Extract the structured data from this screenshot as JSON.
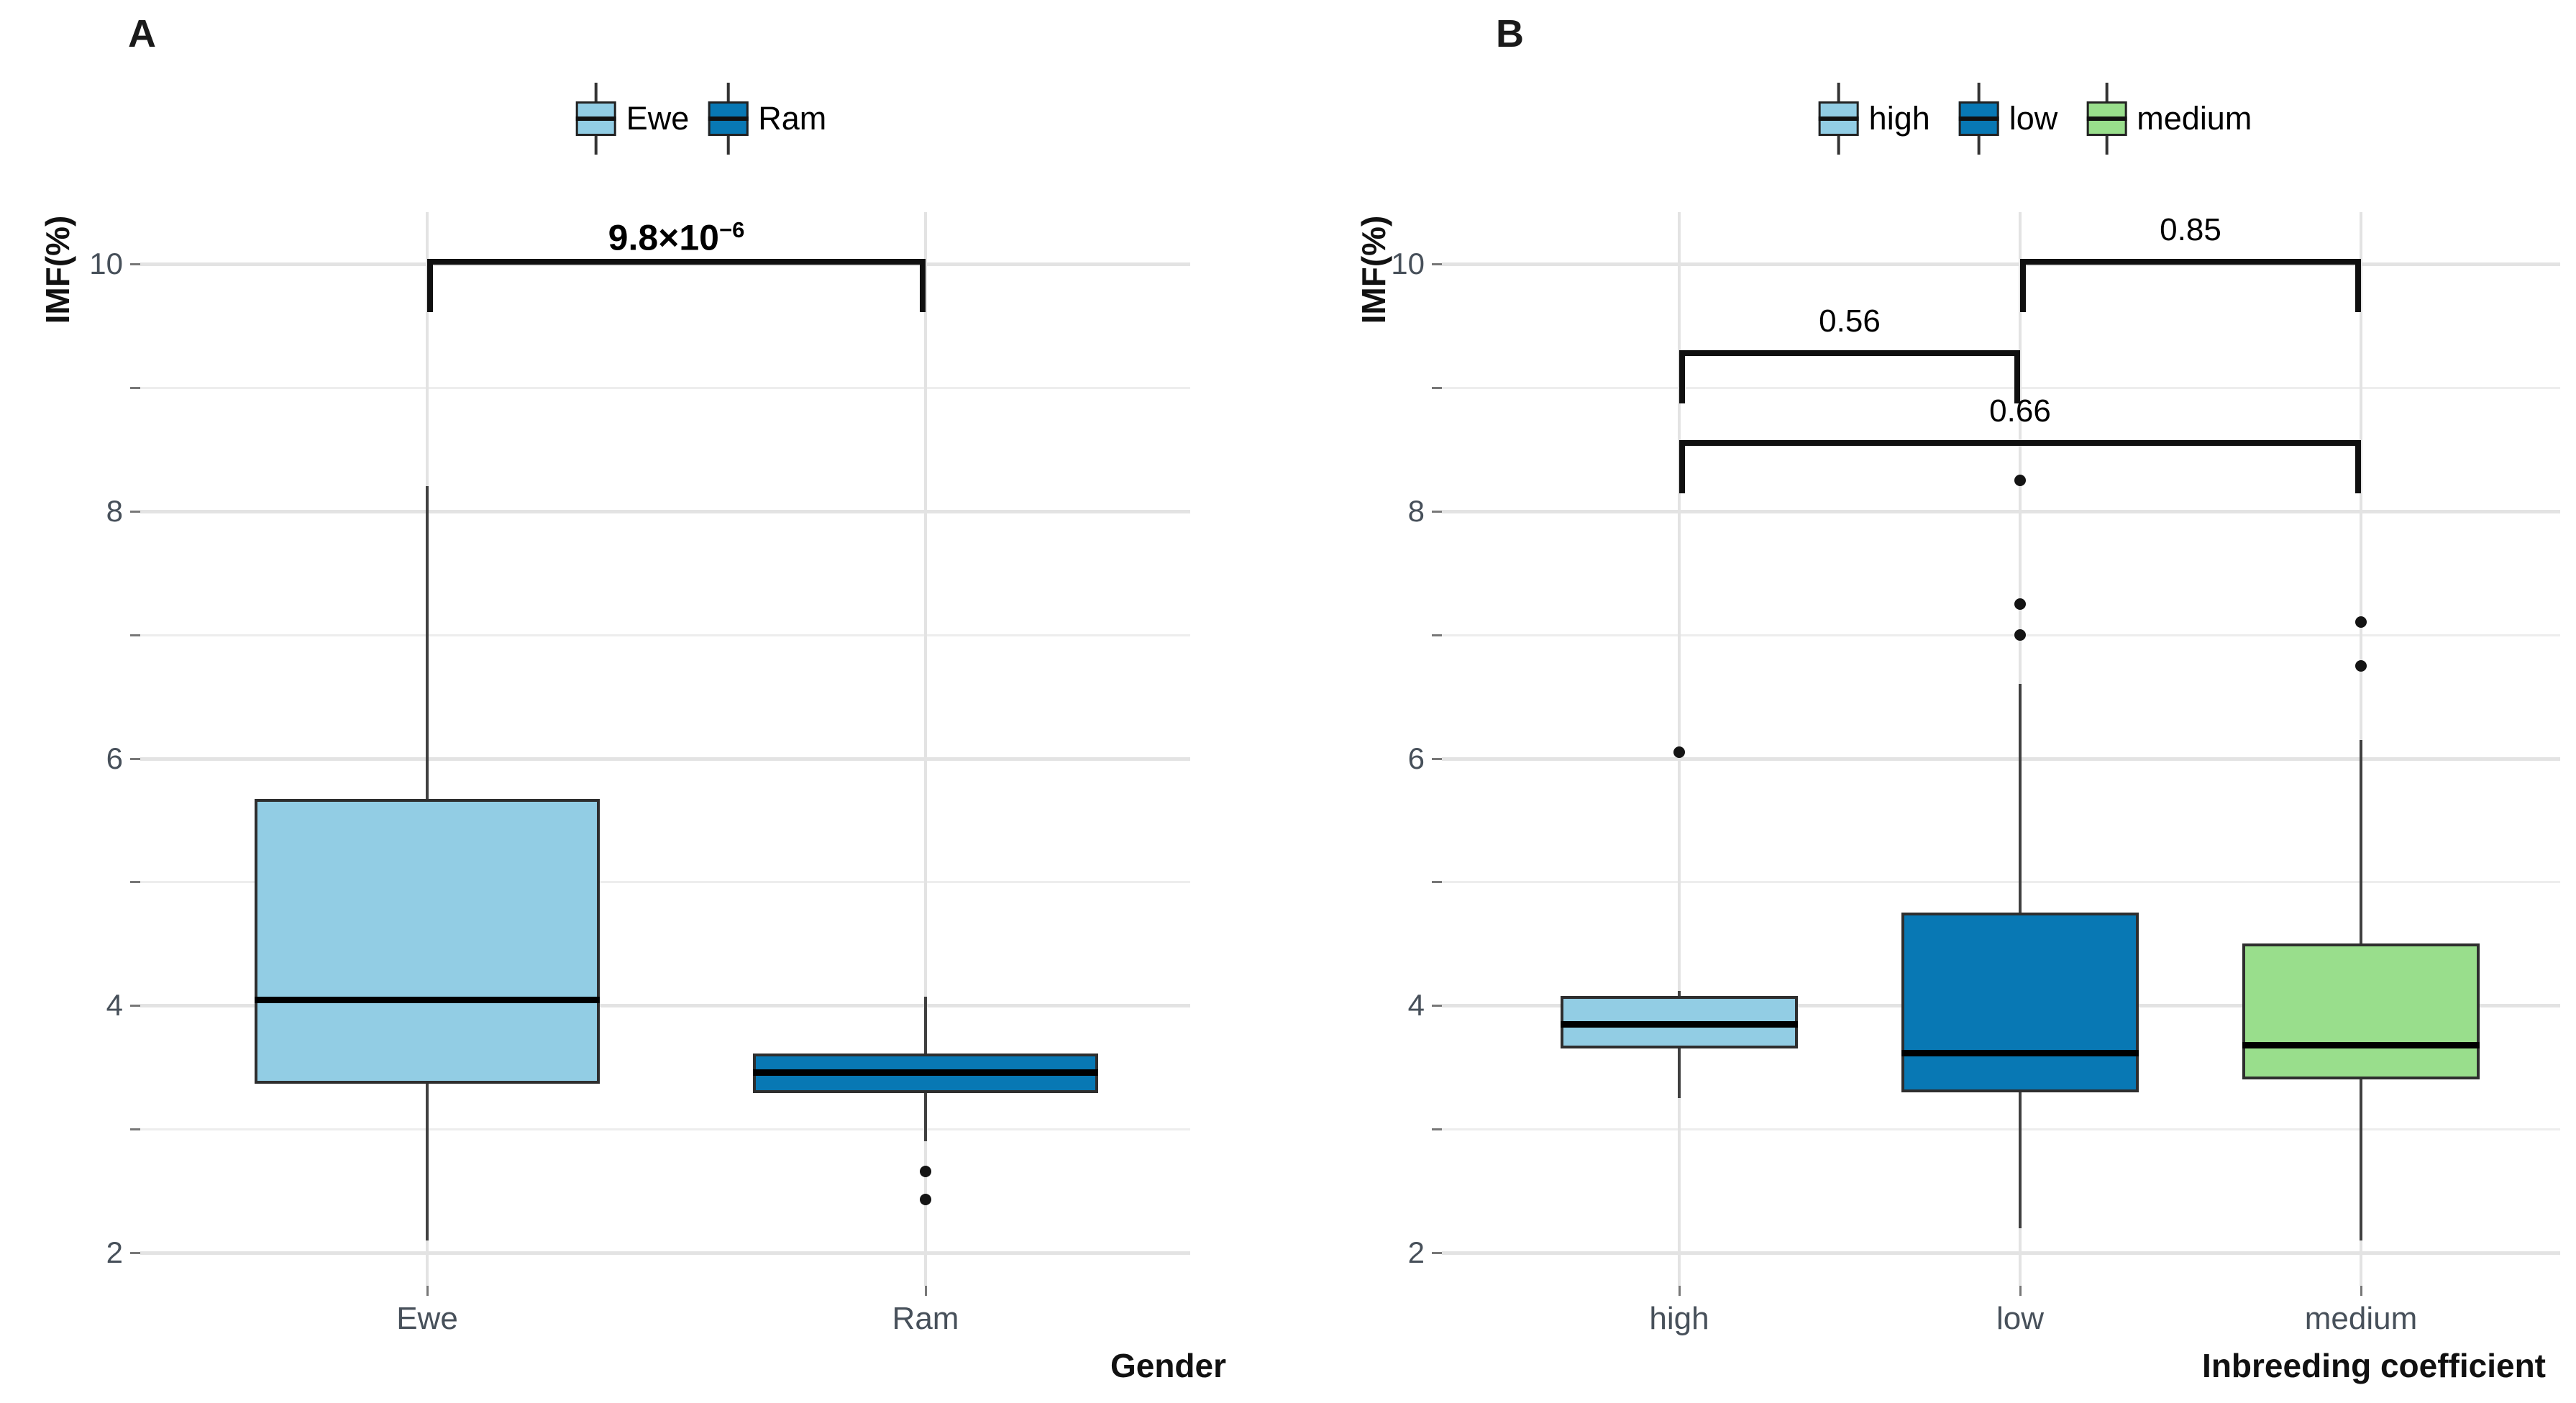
{
  "colors": {
    "light_blue": "#92CDE4",
    "dark_blue": "#0878B4",
    "green": "#99DE8C",
    "grid_major": "#e3e3e3",
    "grid_minor": "#ededed",
    "tick_text": "#47505a",
    "box_border": "#2e2e2e",
    "whisker": "#404040",
    "bracket": "#101010"
  },
  "chart_data": [
    {
      "type": "boxplot",
      "panel_label": "A",
      "ylabel": "IMF(%)",
      "xlabel": "Gender",
      "ylim": [
        1.6,
        10.6
      ],
      "y_major_ticks": [
        10,
        8,
        6,
        4,
        2
      ],
      "y_minor_gridlines": [
        9,
        7,
        5,
        3
      ],
      "grid": true,
      "legend_position": "top",
      "categories": [
        "Ewe",
        "Ram"
      ],
      "legend": [
        {
          "label": "Ewe",
          "color_key": "light_blue"
        },
        {
          "label": "Ram",
          "color_key": "dark_blue"
        }
      ],
      "series": [
        {
          "category": "Ewe",
          "color_key": "light_blue",
          "whisker_low": 2.1,
          "q1": 3.37,
          "median": 4.05,
          "q3": 5.67,
          "whisker_high": 8.2,
          "outliers": []
        },
        {
          "category": "Ram",
          "color_key": "dark_blue",
          "whisker_low": 2.9,
          "q1": 3.29,
          "median": 3.46,
          "q3": 3.61,
          "whisker_high": 4.07,
          "outliers": [
            2.66,
            2.43
          ]
        }
      ],
      "comparisons": [
        {
          "label": "9.8×10⁻⁶",
          "label_base": "9.8×10",
          "label_sup": "−6",
          "between": [
            "Ewe",
            "Ram"
          ],
          "bar_y": 10.02,
          "bold": true
        }
      ]
    },
    {
      "type": "boxplot",
      "panel_label": "B",
      "ylabel": "IMF(%)",
      "xlabel": "Inbreeding coefficient",
      "ylim": [
        1.6,
        10.6
      ],
      "y_major_ticks": [
        10,
        8,
        6,
        4,
        2
      ],
      "y_minor_gridlines": [
        9,
        7,
        5,
        3
      ],
      "grid": true,
      "legend_position": "top",
      "categories": [
        "high",
        "low",
        "medium"
      ],
      "legend": [
        {
          "label": "high",
          "color_key": "light_blue"
        },
        {
          "label": "low",
          "color_key": "dark_blue"
        },
        {
          "label": "medium",
          "color_key": "green"
        }
      ],
      "series": [
        {
          "category": "high",
          "color_key": "light_blue",
          "whisker_low": 3.25,
          "q1": 3.65,
          "median": 3.85,
          "q3": 4.08,
          "whisker_high": 4.12,
          "outliers": [
            6.05
          ]
        },
        {
          "category": "low",
          "color_key": "dark_blue",
          "whisker_low": 2.2,
          "q1": 3.3,
          "median": 3.62,
          "q3": 4.75,
          "whisker_high": 6.6,
          "outliers": [
            8.25,
            7.25,
            7.0
          ]
        },
        {
          "category": "medium",
          "color_key": "green",
          "whisker_low": 2.1,
          "q1": 3.4,
          "median": 3.68,
          "q3": 4.5,
          "whisker_high": 6.15,
          "outliers": [
            7.1,
            6.75
          ]
        }
      ],
      "comparisons": [
        {
          "label": "0.56",
          "between": [
            "high",
            "low"
          ],
          "bar_y": 9.28,
          "bold": false
        },
        {
          "label": "0.66",
          "between": [
            "high",
            "medium"
          ],
          "bar_y": 8.55,
          "bold": false
        },
        {
          "label": "0.85",
          "between": [
            "low",
            "medium"
          ],
          "bar_y": 10.02,
          "bold": false
        }
      ]
    }
  ]
}
